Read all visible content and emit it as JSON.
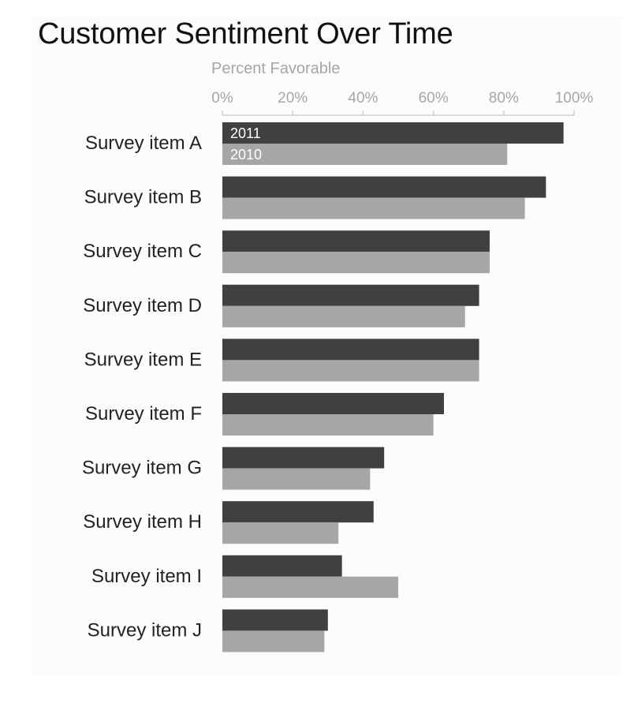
{
  "chart_data": {
    "type": "bar",
    "orientation": "horizontal",
    "title": "Customer Sentiment Over Time",
    "xlabel": "Percent Favorable",
    "xlim": [
      0,
      100
    ],
    "x_ticks": [
      "0%",
      "20%",
      "40%",
      "60%",
      "80%",
      "100%"
    ],
    "categories": [
      "Survey item A",
      "Survey item B",
      "Survey item C",
      "Survey item D",
      "Survey item E",
      "Survey item F",
      "Survey item G",
      "Survey item H",
      "Survey item I",
      "Survey item J"
    ],
    "series": [
      {
        "name": "2011",
        "color": "#404040",
        "values": [
          97,
          92,
          76,
          73,
          73,
          63,
          46,
          43,
          34,
          30
        ]
      },
      {
        "name": "2010",
        "color": "#a6a6a6",
        "values": [
          81,
          86,
          76,
          69,
          73,
          60,
          42,
          33,
          50,
          29
        ]
      }
    ],
    "legend_placement": "inside first bar group",
    "grid": false
  }
}
